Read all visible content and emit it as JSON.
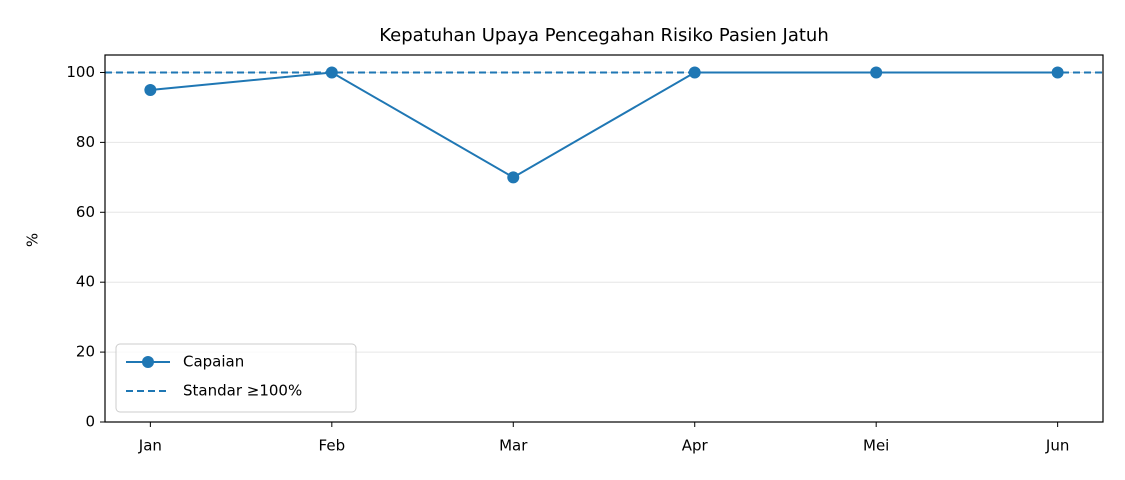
{
  "chart_data": {
    "type": "line",
    "title": "Kepatuhan Upaya Pencegahan Risiko Pasien Jatuh",
    "ylabel": "%",
    "categories": [
      "Jan",
      "Feb",
      "Mar",
      "Apr",
      "Mei",
      "Jun"
    ],
    "series": [
      {
        "name": "Capaian",
        "color": "#1f77b4",
        "values": [
          95,
          100,
          70,
          100,
          100,
          100
        ]
      }
    ],
    "reference_line": {
      "name": "Standar ≥100%",
      "value": 100,
      "color": "#1f77b4"
    },
    "ylim": [
      0,
      105
    ],
    "yticks": [
      0,
      20,
      40,
      60,
      80,
      100
    ],
    "grid": true,
    "legend": "lower left"
  }
}
